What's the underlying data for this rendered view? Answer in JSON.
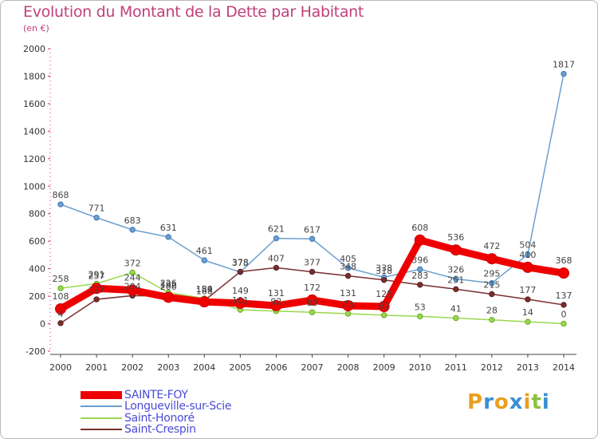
{
  "header": {
    "title": "Evolution du Montant de la Dette par Habitant",
    "subtitle": "(en €)"
  },
  "logo": {
    "text": "Proxiti",
    "letter_colors": [
      "#e8a020",
      "#3a8fd0",
      "#e8a020",
      "#3a8fd0",
      "#e8a020",
      "#8cc040",
      "#3a8fd0"
    ]
  },
  "chart_data": {
    "type": "line",
    "title": "Evolution du Montant de la Dette par Habitant",
    "subtitle": "(en €)",
    "x": [
      "2000",
      "2001",
      "2002",
      "2003",
      "2004",
      "2005",
      "2006",
      "2007",
      "2008",
      "2009",
      "2010",
      "2011",
      "2012",
      "2013",
      "2014"
    ],
    "ylim": [
      -200,
      2000
    ],
    "yticks": [
      -200,
      0,
      200,
      400,
      600,
      800,
      1000,
      1200,
      1400,
      1600,
      1800,
      2000
    ],
    "grid": false,
    "legend": "bottom-left",
    "series": [
      {
        "name": "SAINTE-FOY",
        "color": "#ee0000",
        "values": [
          108,
          257,
          244,
          192,
          159,
          149,
          131,
          172,
          131,
          125,
          608,
          536,
          472,
          410,
          368
        ]
      },
      {
        "name": "Longueville-sur-Scie",
        "color": "#6b9fd0",
        "values": [
          868,
          771,
          683,
          631,
          461,
          375,
          621,
          617,
          405,
          338,
          396,
          326,
          295,
          504,
          1817
        ]
      },
      {
        "name": "Saint-Honoré",
        "color": "#9ad84c",
        "values": [
          258,
          291,
          372,
          226,
          184,
          101,
          92,
          83,
          73,
          62,
          53,
          41,
          28,
          14,
          0
        ]
      },
      {
        "name": "Saint-Crespin",
        "color": "#7a2e2e",
        "values": [
          4,
          177,
          204,
          200,
          168,
          378,
          407,
          377,
          348,
          318,
          283,
          251,
          215,
          177,
          137
        ]
      }
    ]
  }
}
